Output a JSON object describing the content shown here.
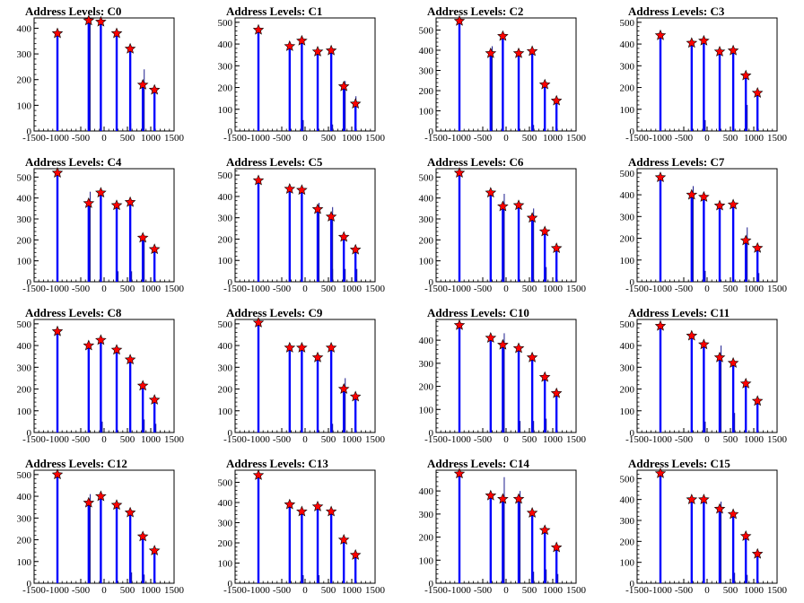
{
  "chart_data": [
    {
      "type": "bar",
      "title": "Address Levels: C0",
      "xlim": [
        -1500,
        1500
      ],
      "ylim": [
        0,
        440
      ],
      "yticks": [
        0,
        100,
        200,
        300,
        400
      ],
      "x": [
        -1000,
        -330,
        -70,
        270,
        560,
        830,
        1080
      ],
      "y": [
        380,
        430,
        425,
        380,
        320,
        180,
        160
      ],
      "side_spikes": [
        {
          "x": -330,
          "y": 430
        },
        {
          "x": 540,
          "y": 30
        },
        {
          "x": 830,
          "y": 240
        }
      ]
    },
    {
      "type": "bar",
      "title": "Address Levels: C1",
      "xlim": [
        -1500,
        1500
      ],
      "ylim": [
        0,
        520
      ],
      "yticks": [
        0,
        100,
        200,
        300,
        400,
        500
      ],
      "x": [
        -1000,
        -330,
        -70,
        270,
        560,
        830,
        1080
      ],
      "y": [
        465,
        390,
        415,
        365,
        370,
        205,
        125
      ],
      "side_spikes": [
        {
          "x": -70,
          "y": 50
        },
        {
          "x": 560,
          "y": 30
        },
        {
          "x": 830,
          "y": 230
        },
        {
          "x": 1060,
          "y": 160
        }
      ]
    },
    {
      "type": "bar",
      "title": "Address Levels: C2",
      "xlim": [
        -1500,
        1500
      ],
      "ylim": [
        0,
        560
      ],
      "yticks": [
        0,
        100,
        200,
        300,
        400,
        500
      ],
      "x": [
        -1000,
        -330,
        -70,
        270,
        560,
        830,
        1080
      ],
      "y": [
        545,
        385,
        470,
        385,
        395,
        230,
        150
      ],
      "side_spikes": [
        {
          "x": -330,
          "y": 420
        },
        {
          "x": 560,
          "y": 30
        }
      ]
    },
    {
      "type": "bar",
      "title": "Address Levels: C3",
      "xlim": [
        -1500,
        1500
      ],
      "ylim": [
        0,
        520
      ],
      "yticks": [
        0,
        100,
        200,
        300,
        400,
        500
      ],
      "x": [
        -1000,
        -330,
        -70,
        270,
        560,
        830,
        1080
      ],
      "y": [
        440,
        405,
        415,
        365,
        370,
        255,
        175
      ],
      "side_spikes": [
        {
          "x": -70,
          "y": 50
        },
        {
          "x": 540,
          "y": 50
        },
        {
          "x": 830,
          "y": 120
        }
      ]
    },
    {
      "type": "bar",
      "title": "Address Levels: C4",
      "xlim": [
        -1500,
        1500
      ],
      "ylim": [
        0,
        540
      ],
      "yticks": [
        0,
        100,
        200,
        300,
        400,
        500
      ],
      "x": [
        -1000,
        -330,
        -70,
        270,
        560,
        830,
        1080
      ],
      "y": [
        520,
        375,
        425,
        365,
        380,
        210,
        155
      ],
      "side_spikes": [
        {
          "x": -330,
          "y": 430
        },
        {
          "x": 270,
          "y": 50
        },
        {
          "x": 560,
          "y": 50
        },
        {
          "x": 830,
          "y": 220
        }
      ]
    },
    {
      "type": "bar",
      "title": "Address Levels: C5",
      "xlim": [
        -1500,
        1500
      ],
      "ylim": [
        0,
        530
      ],
      "yticks": [
        0,
        100,
        200,
        300,
        400,
        500
      ],
      "x": [
        -1000,
        -330,
        -70,
        270,
        560,
        830,
        1080
      ],
      "y": [
        475,
        435,
        430,
        340,
        305,
        210,
        150
      ],
      "side_spikes": [
        {
          "x": 270,
          "y": 370
        },
        {
          "x": 560,
          "y": 350
        },
        {
          "x": 560,
          "y": 60
        },
        {
          "x": 830,
          "y": 60
        },
        {
          "x": 1080,
          "y": 60
        }
      ]
    },
    {
      "type": "bar",
      "title": "Address Levels: C6",
      "xlim": [
        -1500,
        1500
      ],
      "ylim": [
        0,
        540
      ],
      "yticks": [
        0,
        100,
        200,
        300,
        400,
        500
      ],
      "x": [
        -1000,
        -330,
        -70,
        270,
        560,
        830,
        1080
      ],
      "y": [
        520,
        425,
        360,
        365,
        305,
        240,
        160
      ],
      "side_spikes": [
        {
          "x": -70,
          "y": 420
        },
        {
          "x": 560,
          "y": 350
        },
        {
          "x": 830,
          "y": 70
        }
      ]
    },
    {
      "type": "bar",
      "title": "Address Levels: C7",
      "xlim": [
        -1500,
        1500
      ],
      "ylim": [
        0,
        520
      ],
      "yticks": [
        0,
        100,
        200,
        300,
        400,
        500
      ],
      "x": [
        -1000,
        -330,
        -70,
        270,
        560,
        830,
        1080
      ],
      "y": [
        480,
        400,
        390,
        350,
        355,
        190,
        155
      ],
      "side_spikes": [
        {
          "x": -330,
          "y": 440
        },
        {
          "x": -70,
          "y": 50
        },
        {
          "x": 830,
          "y": 250
        },
        {
          "x": 1080,
          "y": 40
        }
      ]
    },
    {
      "type": "bar",
      "title": "Address Levels: C8",
      "xlim": [
        -1500,
        1500
      ],
      "ylim": [
        0,
        520
      ],
      "yticks": [
        0,
        100,
        200,
        300,
        400,
        500
      ],
      "x": [
        -1000,
        -330,
        -70,
        270,
        560,
        830,
        1080
      ],
      "y": [
        465,
        400,
        425,
        380,
        335,
        215,
        150
      ],
      "side_spikes": [
        {
          "x": -70,
          "y": 50
        },
        {
          "x": 830,
          "y": 60
        },
        {
          "x": 1080,
          "y": 40
        }
      ]
    },
    {
      "type": "bar",
      "title": "Address Levels: C9",
      "xlim": [
        -1500,
        1500
      ],
      "ylim": [
        0,
        520
      ],
      "yticks": [
        0,
        100,
        200,
        300,
        400,
        500
      ],
      "x": [
        -1000,
        -330,
        -70,
        270,
        560,
        830,
        1080
      ],
      "y": [
        505,
        390,
        390,
        345,
        390,
        200,
        165
      ],
      "side_spikes": [
        {
          "x": 830,
          "y": 250
        },
        {
          "x": 560,
          "y": 40
        }
      ]
    },
    {
      "type": "bar",
      "title": "Address Levels: C10",
      "xlim": [
        -1500,
        1500
      ],
      "ylim": [
        0,
        490
      ],
      "yticks": [
        0,
        100,
        200,
        300,
        400
      ],
      "x": [
        -1000,
        -330,
        -70,
        270,
        560,
        830,
        1080
      ],
      "y": [
        465,
        410,
        380,
        365,
        325,
        240,
        170
      ],
      "side_spikes": [
        {
          "x": -70,
          "y": 430
        },
        {
          "x": 270,
          "y": 50
        },
        {
          "x": 560,
          "y": 50
        },
        {
          "x": 830,
          "y": 60
        }
      ]
    },
    {
      "type": "bar",
      "title": "Address Levels: C11",
      "xlim": [
        -1500,
        1500
      ],
      "ylim": [
        0,
        520
      ],
      "yticks": [
        0,
        100,
        200,
        300,
        400,
        500
      ],
      "x": [
        -1000,
        -330,
        -70,
        270,
        560,
        830,
        1080
      ],
      "y": [
        490,
        445,
        405,
        345,
        320,
        225,
        145
      ],
      "side_spikes": [
        {
          "x": -70,
          "y": 50
        },
        {
          "x": 270,
          "y": 400
        },
        {
          "x": 560,
          "y": 90
        }
      ]
    },
    {
      "type": "bar",
      "title": "Address Levels: C12",
      "xlim": [
        -1500,
        1500
      ],
      "ylim": [
        0,
        520
      ],
      "yticks": [
        0,
        100,
        200,
        300,
        400,
        500
      ],
      "x": [
        -1000,
        -330,
        -70,
        270,
        560,
        830,
        1080
      ],
      "y": [
        500,
        370,
        400,
        360,
        325,
        215,
        150
      ],
      "side_spikes": [
        {
          "x": -330,
          "y": 410
        },
        {
          "x": 560,
          "y": 50
        },
        {
          "x": 830,
          "y": 40
        }
      ]
    },
    {
      "type": "bar",
      "title": "Address Levels: C13",
      "xlim": [
        -1500,
        1500
      ],
      "ylim": [
        0,
        560
      ],
      "yticks": [
        0,
        100,
        200,
        300,
        400,
        500
      ],
      "x": [
        -1000,
        -330,
        -70,
        270,
        560,
        830,
        1080
      ],
      "y": [
        535,
        390,
        355,
        380,
        355,
        215,
        140
      ],
      "side_spikes": [
        {
          "x": -70,
          "y": 40
        },
        {
          "x": 270,
          "y": 40
        }
      ]
    },
    {
      "type": "bar",
      "title": "Address Levels: C14",
      "xlim": [
        -1500,
        1500
      ],
      "ylim": [
        0,
        490
      ],
      "yticks": [
        0,
        100,
        200,
        300,
        400
      ],
      "x": [
        -1000,
        -330,
        -70,
        270,
        560,
        830,
        1080
      ],
      "y": [
        475,
        380,
        365,
        365,
        305,
        230,
        155
      ],
      "side_spikes": [
        {
          "x": -70,
          "y": 460
        },
        {
          "x": 270,
          "y": 400
        },
        {
          "x": 560,
          "y": 50
        },
        {
          "x": 830,
          "y": 60
        },
        {
          "x": 1080,
          "y": 40
        }
      ]
    },
    {
      "type": "bar",
      "title": "Address Levels: C15",
      "xlim": [
        -1500,
        1500
      ],
      "ylim": [
        0,
        540
      ],
      "yticks": [
        0,
        100,
        200,
        300,
        400,
        500
      ],
      "x": [
        -1000,
        -330,
        -70,
        270,
        560,
        830,
        1080
      ],
      "y": [
        525,
        400,
        400,
        355,
        330,
        225,
        140
      ],
      "side_spikes": [
        {
          "x": 270,
          "y": 390
        },
        {
          "x": 560,
          "y": 50
        },
        {
          "x": 830,
          "y": 40
        }
      ]
    }
  ],
  "xticks": [
    -1500,
    -1000,
    -500,
    0,
    500,
    1000,
    1500
  ],
  "colors": {
    "bars": "#0000ff",
    "markers": "#ff0000",
    "marker_outline": "#000000",
    "axes": "#000000",
    "background": "#ffffff"
  }
}
